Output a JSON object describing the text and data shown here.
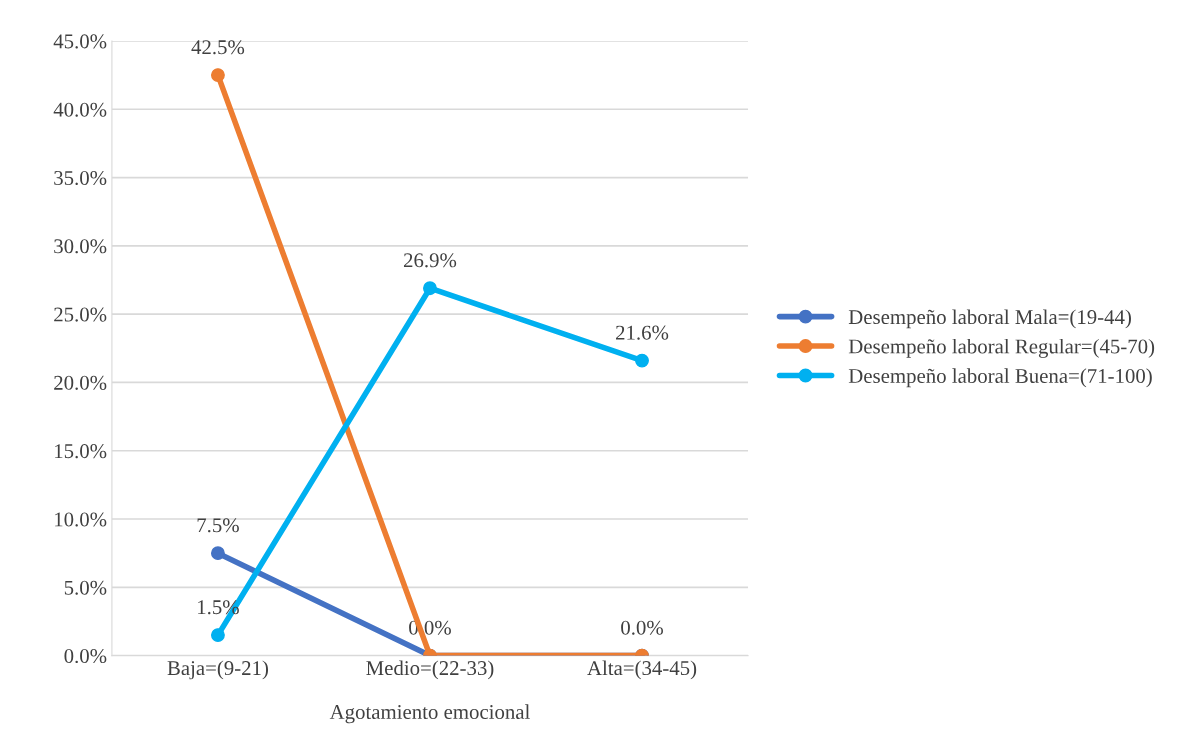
{
  "chart_data": {
    "type": "line",
    "xlabel": "Agotamiento emocional",
    "categories": [
      "Baja=(9-21)",
      "Medio=(22-33)",
      "Alta=(34-45)"
    ],
    "series": [
      {
        "name": "Desempeño laboral Mala=(19-44)",
        "color": "#4472c4",
        "values": [
          7.5,
          0.0,
          0.0
        ],
        "value_labels": [
          "7.5%",
          "0.0%",
          "0.0%"
        ]
      },
      {
        "name": "Desempeño laboral Regular=(45-70)",
        "color": "#ed7d31",
        "values": [
          42.5,
          0.0,
          0.0
        ],
        "value_labels": [
          "42.5%",
          null,
          null
        ]
      },
      {
        "name": "Desempeño laboral Buena=(71-100)",
        "color": "#00b0f0",
        "values": [
          1.5,
          26.9,
          21.6
        ],
        "value_labels": [
          "1.5%",
          "26.9%",
          "21.6%"
        ]
      }
    ],
    "ylim": [
      0,
      45
    ],
    "yticks": [
      {
        "value": 0,
        "label": "0.0%"
      },
      {
        "value": 5,
        "label": "5.0%"
      },
      {
        "value": 10,
        "label": "10.0%"
      },
      {
        "value": 15,
        "label": "15.0%"
      },
      {
        "value": 20,
        "label": "20.0%"
      },
      {
        "value": 25,
        "label": "25.0%"
      },
      {
        "value": 30,
        "label": "30.0%"
      },
      {
        "value": 35,
        "label": "35.0%"
      },
      {
        "value": 40,
        "label": "40.0%"
      },
      {
        "value": 45,
        "label": "45.0%"
      }
    ],
    "grid": "y",
    "legend": "right",
    "marker": "circle",
    "line_style": "solid"
  }
}
